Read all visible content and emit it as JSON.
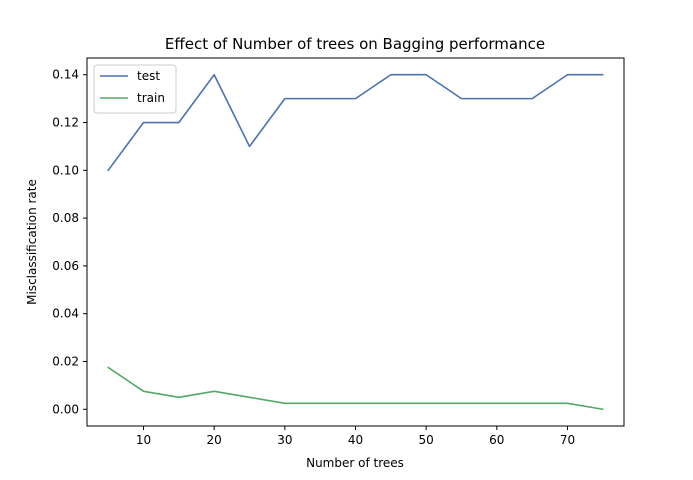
{
  "chart_data": {
    "type": "line",
    "title": "Effect of Number of trees on Bagging performance",
    "xlabel": "Number of trees",
    "ylabel": "Misclassification rate",
    "xlim": [
      2,
      78
    ],
    "ylim": [
      -0.007,
      0.147
    ],
    "x_ticks": [
      10,
      20,
      30,
      40,
      50,
      60,
      70
    ],
    "y_ticks": [
      0.0,
      0.02,
      0.04,
      0.06,
      0.08,
      0.1,
      0.12,
      0.14
    ],
    "x_tick_labels": [
      "10",
      "20",
      "30",
      "40",
      "50",
      "60",
      "70"
    ],
    "y_tick_labels": [
      "0.00",
      "0.02",
      "0.04",
      "0.06",
      "0.08",
      "0.10",
      "0.12",
      "0.14"
    ],
    "grid": false,
    "legend": "top-left",
    "x": [
      5,
      10,
      15,
      20,
      25,
      30,
      35,
      40,
      45,
      50,
      55,
      60,
      65,
      70,
      75
    ],
    "series": [
      {
        "name": "test",
        "color": "#4c72b0",
        "values": [
          0.1,
          0.12,
          0.12,
          0.14,
          0.11,
          0.13,
          0.13,
          0.13,
          0.14,
          0.14,
          0.13,
          0.13,
          0.13,
          0.14,
          0.14
        ]
      },
      {
        "name": "train",
        "color": "#55a868",
        "values": [
          0.0175,
          0.0075,
          0.005,
          0.0075,
          0.005,
          0.0025,
          0.0025,
          0.0025,
          0.0025,
          0.0025,
          0.0025,
          0.0025,
          0.0025,
          0.0025,
          0.0
        ]
      }
    ]
  }
}
